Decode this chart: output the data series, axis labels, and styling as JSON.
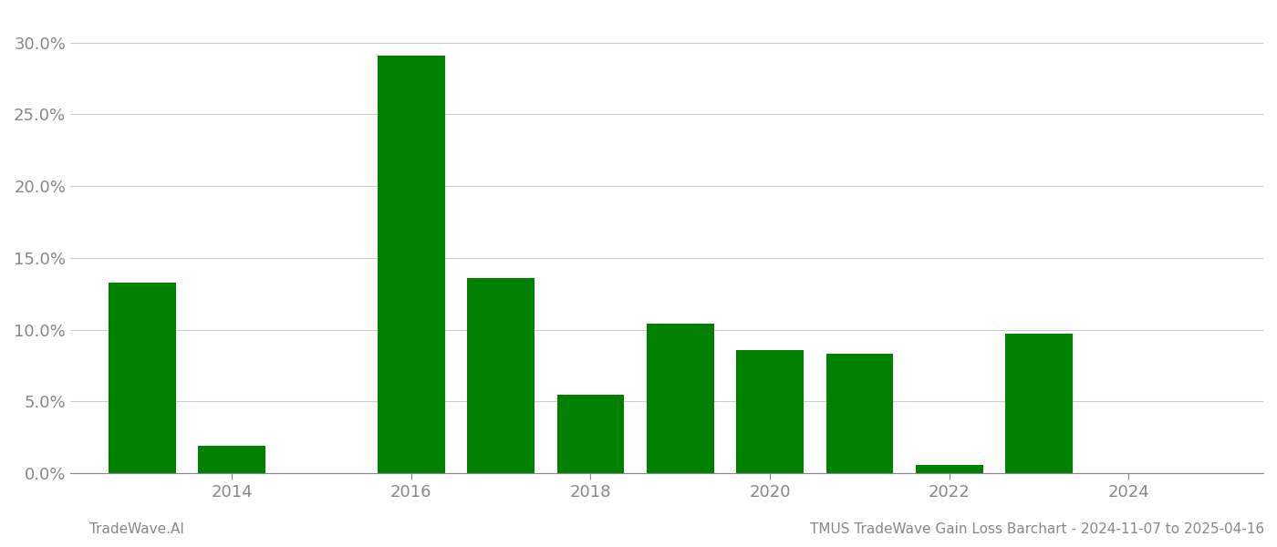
{
  "bar_positions": [
    2013,
    2014,
    2016,
    2017,
    2018,
    2019,
    2020,
    2021,
    2022,
    2023
  ],
  "values": [
    0.133,
    0.019,
    0.291,
    0.136,
    0.055,
    0.104,
    0.086,
    0.083,
    0.006,
    0.097
  ],
  "bar_color": "#008000",
  "background_color": "#ffffff",
  "grid_color": "#cccccc",
  "axis_color": "#888888",
  "tick_color": "#888888",
  "title": "TMUS TradeWave Gain Loss Barchart - 2024-11-07 to 2025-04-16",
  "footer_left": "TradeWave.AI",
  "ylim": [
    0,
    0.32
  ],
  "ytick_step": 0.05,
  "xticks": [
    2014,
    2016,
    2018,
    2020,
    2022,
    2024
  ],
  "xlabel_years": [
    "2014",
    "2016",
    "2018",
    "2020",
    "2022",
    "2024"
  ],
  "xlim": [
    2012.2,
    2025.5
  ],
  "bar_width": 0.75,
  "title_fontsize": 11,
  "footer_fontsize": 11,
  "tick_fontsize": 13
}
